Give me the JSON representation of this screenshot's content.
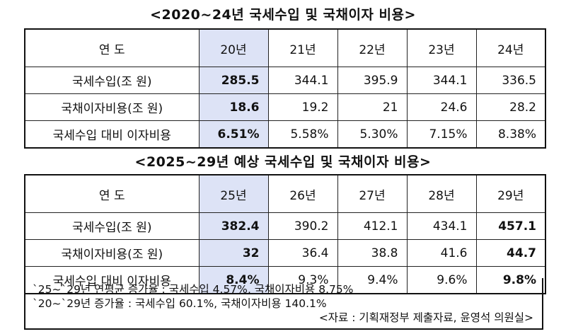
{
  "table1": {
    "title": "<2020~24년 국세수입 및 국채이자 비용>",
    "header": [
      "연 도",
      "20년",
      "21년",
      "22년",
      "23년",
      "24년"
    ],
    "rows": [
      {
        "label": "국세수입(조 원)",
        "values": [
          "285.5",
          "344.1",
          "395.9",
          "344.1",
          "336.5"
        ]
      },
      {
        "label": "국채이자비용(조 원)",
        "values": [
          "18.6",
          "19.2",
          "21",
          "24.6",
          "28.2"
        ]
      },
      {
        "label": "국세수입 대비 이자비용",
        "values": [
          "6.51%",
          "5.58%",
          "5.30%",
          "7.15%",
          "8.38%"
        ]
      }
    ]
  },
  "table2": {
    "title": "<2025~29년 예상 국세수입 및 국채이자 비용>",
    "header": [
      "연 도",
      "25년",
      "26년",
      "27년",
      "28년",
      "29년"
    ],
    "rows": [
      {
        "label": "국세수입(조 원)",
        "values": [
          "382.4",
          "390.2",
          "412.1",
          "434.1",
          "457.1"
        ]
      },
      {
        "label": "국채이자비용(조 원)",
        "values": [
          "32",
          "36.4",
          "38.8",
          "41.6",
          "44.7"
        ]
      },
      {
        "label": "국세수입 대비 이자비용",
        "values": [
          "8.4%",
          "9.3%",
          "9.4%",
          "9.6%",
          "9.8%"
        ]
      }
    ]
  },
  "notes": {
    "line1": "`25~`29년 연평균 증가율 : 국세수입 4.57%, 국채이자비용 8.75%",
    "line2": "`20~`29년 증가율 : 국세수입 60.1%, 국채이자비용 140.1%",
    "source": "<자료 : 기획재정부 제출자료, 윤영석 의원실>"
  },
  "colors": {
    "highlight_column": "#dde3f6",
    "border": "#222222"
  }
}
